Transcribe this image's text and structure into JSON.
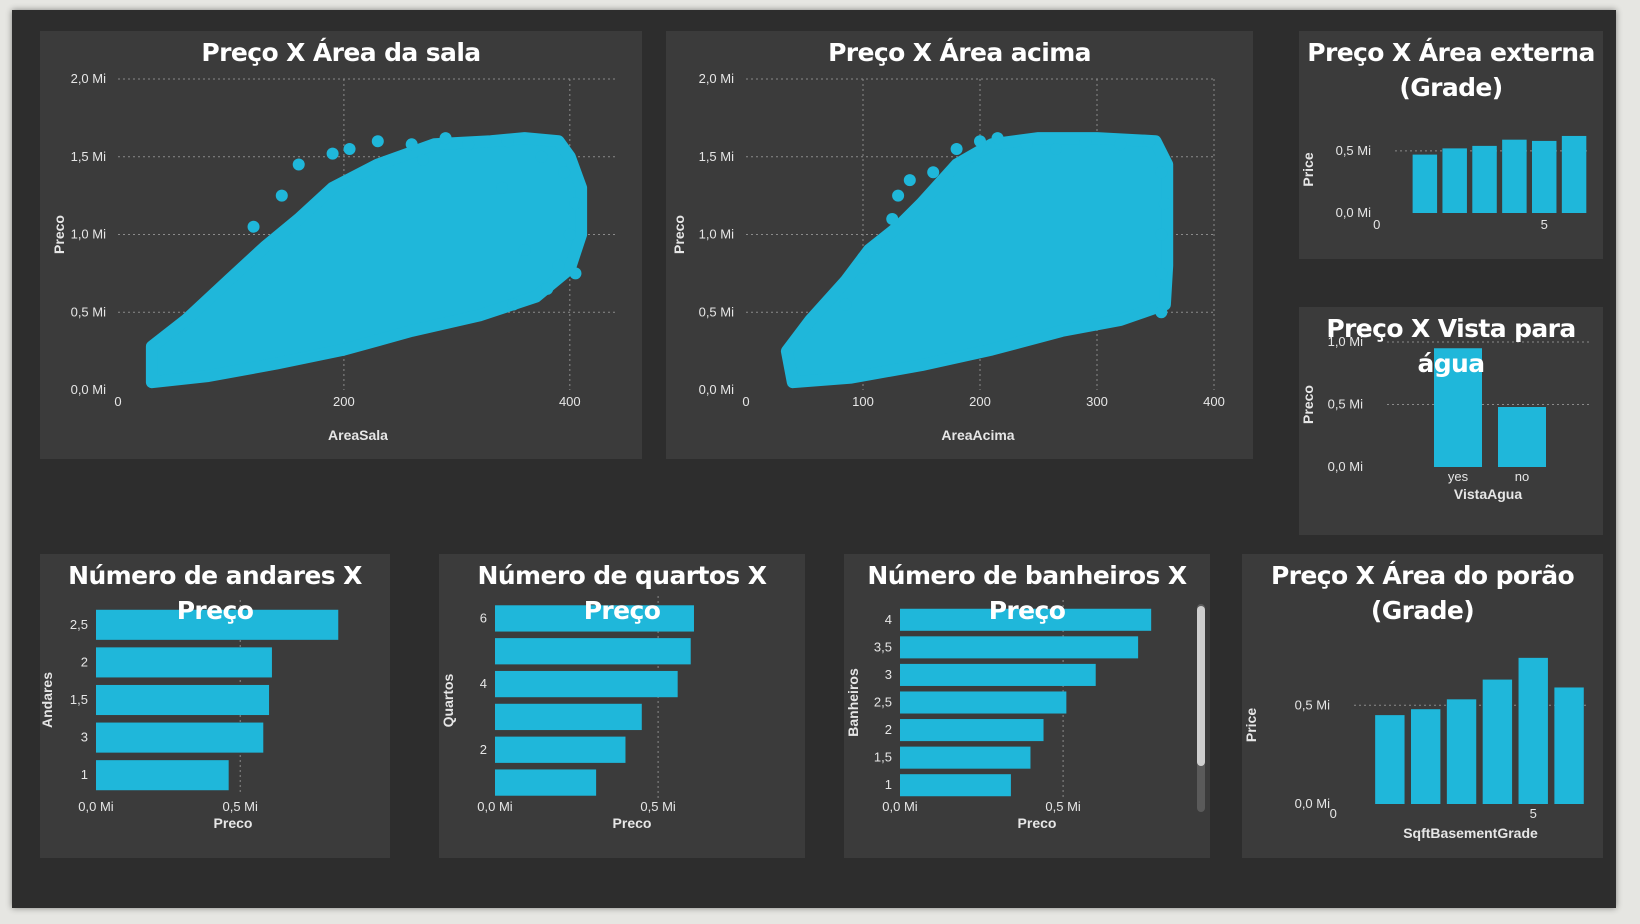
{
  "colors": {
    "canvas": "#2d2d2d",
    "tile": "#3b3b3b",
    "mark": "#1fb7da",
    "text": "#ffffff",
    "grid": "#8a8a8a",
    "page": "#e6e6e2"
  },
  "chart_data": [
    {
      "id": "area-sala",
      "type": "scatter",
      "title": "Preço X Área da sala",
      "xlabel": "AreaSala",
      "ylabel": "Preco",
      "xlim": [
        0,
        440
      ],
      "ylim": [
        0,
        2.0
      ],
      "x_ticks": [
        0,
        200,
        400
      ],
      "x_tick_labels": [
        "0",
        "200",
        "400"
      ],
      "y_ticks": [
        0,
        0.5,
        1.0,
        1.5,
        2.0
      ],
      "y_tick_labels": [
        "0,0 Mi",
        "0,5 Mi",
        "1,0 Mi",
        "1,5 Mi",
        "2,0 Mi"
      ],
      "grid": true,
      "polygon": [
        [
          30,
          0.05
        ],
        [
          30,
          0.28
        ],
        [
          60,
          0.45
        ],
        [
          100,
          0.72
        ],
        [
          130,
          0.92
        ],
        [
          160,
          1.1
        ],
        [
          190,
          1.3
        ],
        [
          230,
          1.45
        ],
        [
          280,
          1.58
        ],
        [
          330,
          1.6
        ],
        [
          360,
          1.62
        ],
        [
          390,
          1.6
        ],
        [
          400,
          1.5
        ],
        [
          410,
          1.3
        ],
        [
          410,
          1.0
        ],
        [
          400,
          0.78
        ],
        [
          370,
          0.6
        ],
        [
          320,
          0.48
        ],
        [
          260,
          0.38
        ],
        [
          200,
          0.26
        ],
        [
          140,
          0.17
        ],
        [
          80,
          0.09
        ]
      ],
      "outliers": [
        [
          160,
          1.45
        ],
        [
          190,
          1.52
        ],
        [
          230,
          1.6
        ],
        [
          260,
          1.58
        ],
        [
          290,
          1.62
        ],
        [
          310,
          1.58
        ],
        [
          345,
          1.6
        ],
        [
          375,
          1.5
        ],
        [
          395,
          1.4
        ],
        [
          405,
          1.2
        ],
        [
          400,
          1.0
        ],
        [
          405,
          0.75
        ],
        [
          390,
          0.8
        ],
        [
          380,
          0.65
        ],
        [
          360,
          0.9
        ],
        [
          350,
          0.55
        ],
        [
          340,
          1.3
        ],
        [
          145,
          1.25
        ],
        [
          120,
          1.05
        ],
        [
          205,
          1.55
        ],
        [
          270,
          1.48
        ]
      ]
    },
    {
      "id": "area-acima",
      "type": "scatter",
      "title": "Preço X Área acima",
      "xlabel": "AreaAcima",
      "ylabel": "Preco",
      "xlim": [
        0,
        400
      ],
      "ylim": [
        0,
        2.0
      ],
      "x_ticks": [
        0,
        100,
        200,
        300,
        400
      ],
      "x_tick_labels": [
        "0",
        "100",
        "200",
        "300",
        "400"
      ],
      "y_ticks": [
        0,
        0.5,
        1.0,
        1.5,
        2.0
      ],
      "y_tick_labels": [
        "0,0 Mi",
        "0,5 Mi",
        "1,0 Mi",
        "1,5 Mi",
        "2,0 Mi"
      ],
      "grid": true,
      "polygon": [
        [
          40,
          0.05
        ],
        [
          35,
          0.25
        ],
        [
          55,
          0.45
        ],
        [
          85,
          0.7
        ],
        [
          105,
          0.9
        ],
        [
          130,
          1.05
        ],
        [
          150,
          1.2
        ],
        [
          180,
          1.45
        ],
        [
          210,
          1.58
        ],
        [
          250,
          1.62
        ],
        [
          300,
          1.62
        ],
        [
          350,
          1.6
        ],
        [
          360,
          1.45
        ],
        [
          360,
          1.1
        ],
        [
          360,
          0.8
        ],
        [
          358,
          0.55
        ],
        [
          320,
          0.45
        ],
        [
          270,
          0.38
        ],
        [
          210,
          0.26
        ],
        [
          150,
          0.16
        ],
        [
          90,
          0.08
        ]
      ],
      "outliers": [
        [
          130,
          1.25
        ],
        [
          140,
          1.35
        ],
        [
          160,
          1.4
        ],
        [
          180,
          1.55
        ],
        [
          200,
          1.6
        ],
        [
          215,
          1.62
        ],
        [
          240,
          1.58
        ],
        [
          265,
          1.55
        ],
        [
          290,
          1.6
        ],
        [
          320,
          1.58
        ],
        [
          345,
          1.6
        ],
        [
          355,
          1.4
        ],
        [
          358,
          1.2
        ],
        [
          355,
          1.0
        ],
        [
          355,
          0.75
        ],
        [
          355,
          0.5
        ],
        [
          100,
          0.85
        ],
        [
          125,
          1.1
        ],
        [
          85,
          0.55
        ]
      ]
    },
    {
      "id": "area-externa",
      "type": "bar",
      "title": "Preço X Área externa\n(Grade)",
      "xlabel": "",
      "ylabel": "Price",
      "x": [
        1,
        2,
        3,
        4,
        5,
        6
      ],
      "values": [
        0.47,
        0.52,
        0.54,
        0.59,
        0.58,
        0.62
      ],
      "xlim": [
        0,
        6.5
      ],
      "ylim": [
        0,
        0.7
      ],
      "x_ticks": [
        0,
        5
      ],
      "x_tick_labels": [
        "0",
        "5"
      ],
      "y_ticks": [
        0,
        0.5
      ],
      "y_tick_labels": [
        "0,0 Mi",
        "0,5 Mi"
      ],
      "grid": true
    },
    {
      "id": "vista-agua",
      "type": "bar",
      "title": "Preço X Vista para água",
      "xlabel": "VistaAgua",
      "ylabel": "Preco",
      "categories": [
        "yes",
        "no"
      ],
      "values": [
        0.95,
        0.48
      ],
      "ylim": [
        0,
        1.0
      ],
      "y_ticks": [
        0,
        0.5,
        1.0
      ],
      "y_tick_labels": [
        "0,0 Mi",
        "0,5 Mi",
        "1,0 Mi"
      ],
      "grid": true
    },
    {
      "id": "andares",
      "type": "bar",
      "orientation": "horizontal",
      "title": "Número de andares X Preço",
      "xlabel": "Preco",
      "ylabel": "Andares",
      "categories": [
        "2,5",
        "2",
        "1,5",
        "3",
        "1"
      ],
      "values": [
        0.84,
        0.61,
        0.6,
        0.58,
        0.46
      ],
      "xlim": [
        0,
        0.95
      ],
      "x_ticks": [
        0,
        0.5
      ],
      "x_tick_labels": [
        "0,0 Mi",
        "0,5 Mi"
      ],
      "grid": true
    },
    {
      "id": "quartos",
      "type": "bar",
      "orientation": "horizontal",
      "title": "Número de quartos X Preço",
      "xlabel": "Preco",
      "ylabel": "Quartos",
      "categories": [
        "6",
        "",
        "4",
        "",
        "2",
        ""
      ],
      "values": [
        0.61,
        0.6,
        0.56,
        0.45,
        0.4,
        0.31
      ],
      "xlim": [
        0,
        0.84
      ],
      "x_ticks": [
        0,
        0.5
      ],
      "x_tick_labels": [
        "0,0 Mi",
        "0,5 Mi"
      ],
      "grid": true
    },
    {
      "id": "banheiros",
      "type": "bar",
      "orientation": "horizontal",
      "title": "Número de banheiros X Preço",
      "xlabel": "Preco",
      "ylabel": "Banheiros",
      "categories": [
        "4",
        "3,5",
        "3",
        "2,5",
        "2",
        "1,5",
        "1"
      ],
      "values": [
        0.77,
        0.73,
        0.6,
        0.51,
        0.44,
        0.4,
        0.34
      ],
      "xlim": [
        0,
        0.84
      ],
      "x_ticks": [
        0,
        0.5
      ],
      "x_tick_labels": [
        "0,0 Mi",
        "0,5 Mi"
      ],
      "grid": true
    },
    {
      "id": "porao",
      "type": "bar",
      "title": "Preço X Área do porão\n(Grade)",
      "xlabel": "SqftBasementGrade",
      "ylabel": "Price",
      "x": [
        1,
        2,
        3,
        4,
        5,
        6
      ],
      "values": [
        0.45,
        0.48,
        0.53,
        0.63,
        0.74,
        0.59
      ],
      "xlim": [
        0,
        6.5
      ],
      "ylim": [
        0,
        0.8
      ],
      "x_ticks": [
        0,
        5
      ],
      "x_tick_labels": [
        "0",
        "5"
      ],
      "y_ticks": [
        0,
        0.5
      ],
      "y_tick_labels": [
        "0,0 Mi",
        "0,5 Mi"
      ],
      "grid": true
    }
  ]
}
